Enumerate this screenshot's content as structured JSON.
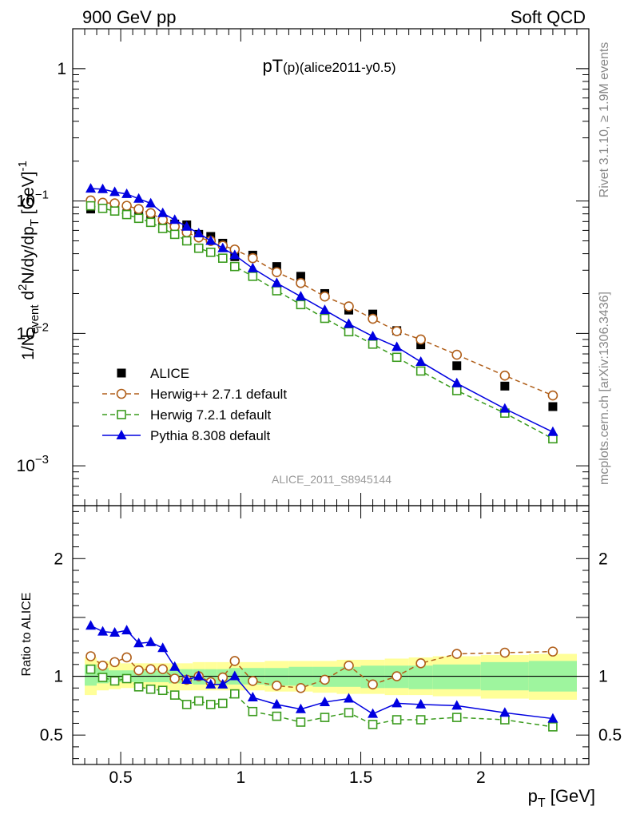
{
  "header": {
    "left": "900 GeV pp",
    "right": "Soft QCD"
  },
  "side_labels": {
    "rivet": "Rivet 3.1.10, ≥ 1.9M events",
    "mcplots": "mcplots.cern.ch [arXiv:1306.3436]"
  },
  "chart_data": [
    {
      "type": "scatter",
      "title": {
        "main": "pT",
        "sub": "(p)",
        "extra": "(alice2011-y0.5)"
      },
      "watermark": "ALICE_2011_S8945144",
      "ylabel": {
        "p1": "1/N",
        "p1_sub": "event",
        "p2": " d",
        "p2_sup": "2",
        "p3": "N/dy/dp",
        "p3_sub": "T",
        "p4": " [GeV]",
        "p4_sup": "-1"
      },
      "yscale": "log",
      "ylim": [
        0.0005,
        2.0
      ],
      "xlim": [
        0.3,
        2.45
      ],
      "y_ticks": [
        {
          "value": 1,
          "base": "1",
          "exp": ""
        },
        {
          "value": 0.1,
          "base": "10",
          "exp": "−1"
        },
        {
          "value": 0.01,
          "base": "10",
          "exp": "−2"
        },
        {
          "value": 0.001,
          "base": "10",
          "exp": "−3"
        }
      ],
      "legend_position": "lower-left",
      "x": [
        0.375,
        0.425,
        0.475,
        0.525,
        0.575,
        0.625,
        0.675,
        0.725,
        0.775,
        0.825,
        0.875,
        0.925,
        0.975,
        1.05,
        1.15,
        1.25,
        1.35,
        1.45,
        1.55,
        1.65,
        1.75,
        1.9,
        2.1,
        2.3
      ],
      "series": [
        {
          "name": "ALICE",
          "color": "#000000",
          "marker": "square",
          "values": [
            0.087,
            0.089,
            0.087,
            0.08,
            0.081,
            0.078,
            0.068,
            0.067,
            0.066,
            0.056,
            0.054,
            0.048,
            0.038,
            0.039,
            0.032,
            0.027,
            0.02,
            0.015,
            0.014,
            0.0105,
            0.0082,
            0.0057,
            0.004,
            0.0028
          ]
        },
        {
          "name": "Herwig++ 2.7.1 default",
          "color": "#b05f1a",
          "marker": "open-circle",
          "dash": true,
          "values": [
            0.101,
            0.097,
            0.096,
            0.092,
            0.087,
            0.081,
            0.072,
            0.064,
            0.058,
            0.053,
            0.05,
            0.046,
            0.043,
            0.037,
            0.029,
            0.024,
            0.019,
            0.016,
            0.0129,
            0.0104,
            0.009,
            0.0069,
            0.0048,
            0.0034
          ]
        },
        {
          "name": "Herwig 7.2.1 default",
          "color": "#3a9b1d",
          "marker": "open-square",
          "dash": true,
          "values": [
            0.092,
            0.088,
            0.084,
            0.079,
            0.074,
            0.069,
            0.062,
            0.056,
            0.05,
            0.044,
            0.041,
            0.037,
            0.032,
            0.027,
            0.021,
            0.0165,
            0.013,
            0.0103,
            0.0083,
            0.0066,
            0.0052,
            0.0037,
            0.0025,
            0.0016
          ]
        },
        {
          "name": "Pythia 8.308 default",
          "color": "#0000e0",
          "marker": "triangle",
          "values": [
            0.124,
            0.123,
            0.117,
            0.113,
            0.104,
            0.096,
            0.081,
            0.072,
            0.064,
            0.057,
            0.05,
            0.044,
            0.039,
            0.031,
            0.024,
            0.019,
            0.015,
            0.0118,
            0.0095,
            0.0079,
            0.0061,
            0.0042,
            0.0027,
            0.0018
          ]
        }
      ]
    },
    {
      "type": "scatter",
      "ylabel": "Ratio to ALICE",
      "ylim": [
        0.25,
        2.45
      ],
      "xlim": [
        0.3,
        2.45
      ],
      "x_ticks": [
        0.5,
        1,
        1.5,
        2
      ],
      "x_tick_labels": [
        "0.5",
        "1",
        "1.5",
        "2"
      ],
      "y_ticks": [
        0.5,
        1,
        2
      ],
      "y_tick_labels": [
        "0.5",
        "1",
        "2"
      ],
      "xlabel": {
        "p": "p",
        "sub": "T",
        "unit": " [GeV]"
      },
      "band": {
        "x": [
          0.35,
          0.4,
          0.45,
          0.5,
          0.55,
          0.6,
          0.65,
          0.7,
          0.75,
          0.8,
          0.85,
          0.9,
          0.95,
          1.0,
          1.1,
          1.2,
          1.3,
          1.4,
          1.5,
          1.6,
          1.7,
          1.8,
          2.0,
          2.2,
          2.4
        ],
        "stat_low": [
          0.92,
          0.94,
          0.95,
          0.95,
          0.95,
          0.95,
          0.95,
          0.94,
          0.94,
          0.93,
          0.93,
          0.93,
          0.93,
          0.93,
          0.92,
          0.92,
          0.91,
          0.91,
          0.9,
          0.9,
          0.89,
          0.89,
          0.88,
          0.87
        ],
        "stat_high": [
          1.1,
          1.07,
          1.05,
          1.05,
          1.05,
          1.05,
          1.05,
          1.06,
          1.06,
          1.06,
          1.06,
          1.06,
          1.07,
          1.07,
          1.07,
          1.08,
          1.08,
          1.08,
          1.09,
          1.09,
          1.09,
          1.1,
          1.12,
          1.13
        ],
        "total_low": [
          0.84,
          0.88,
          0.89,
          0.9,
          0.9,
          0.9,
          0.89,
          0.88,
          0.88,
          0.88,
          0.88,
          0.88,
          0.88,
          0.88,
          0.87,
          0.87,
          0.86,
          0.85,
          0.85,
          0.84,
          0.84,
          0.83,
          0.81,
          0.8
        ],
        "total_high": [
          1.16,
          1.13,
          1.12,
          1.11,
          1.11,
          1.11,
          1.11,
          1.11,
          1.11,
          1.12,
          1.12,
          1.12,
          1.12,
          1.12,
          1.13,
          1.13,
          1.13,
          1.14,
          1.14,
          1.15,
          1.16,
          1.17,
          1.18,
          1.19
        ]
      },
      "band_colors": {
        "stat": "#9ef59e",
        "total": "#ffff99"
      },
      "x": [
        0.375,
        0.425,
        0.475,
        0.525,
        0.575,
        0.625,
        0.675,
        0.725,
        0.775,
        0.825,
        0.875,
        0.925,
        0.975,
        1.05,
        1.15,
        1.25,
        1.35,
        1.45,
        1.55,
        1.65,
        1.75,
        1.9,
        2.1,
        2.3
      ],
      "series": [
        {
          "name": "Herwig++ 2.7.1 default",
          "color": "#b05f1a",
          "marker": "open-circle",
          "dash": true,
          "values": [
            1.17,
            1.09,
            1.12,
            1.16,
            1.05,
            1.06,
            1.06,
            0.98,
            0.97,
            1.0,
            0.95,
            0.99,
            1.13,
            0.96,
            0.92,
            0.9,
            0.97,
            1.09,
            0.93,
            1.0,
            1.11,
            1.19,
            1.2,
            1.21
          ]
        },
        {
          "name": "Herwig 7.2.1 default",
          "color": "#3a9b1d",
          "marker": "open-square",
          "dash": true,
          "values": [
            1.06,
            0.99,
            0.96,
            0.98,
            0.91,
            0.89,
            0.88,
            0.84,
            0.76,
            0.79,
            0.76,
            0.77,
            0.85,
            0.7,
            0.66,
            0.61,
            0.65,
            0.69,
            0.59,
            0.63,
            0.63,
            0.65,
            0.63,
            0.57
          ]
        },
        {
          "name": "Pythia 8.308 default",
          "color": "#0000e0",
          "marker": "triangle",
          "values": [
            1.43,
            1.38,
            1.37,
            1.39,
            1.28,
            1.29,
            1.24,
            1.08,
            0.97,
            1.0,
            0.93,
            0.93,
            1.0,
            0.82,
            0.76,
            0.72,
            0.78,
            0.81,
            0.68,
            0.77,
            0.76,
            0.75,
            0.69,
            0.64
          ]
        }
      ]
    }
  ]
}
